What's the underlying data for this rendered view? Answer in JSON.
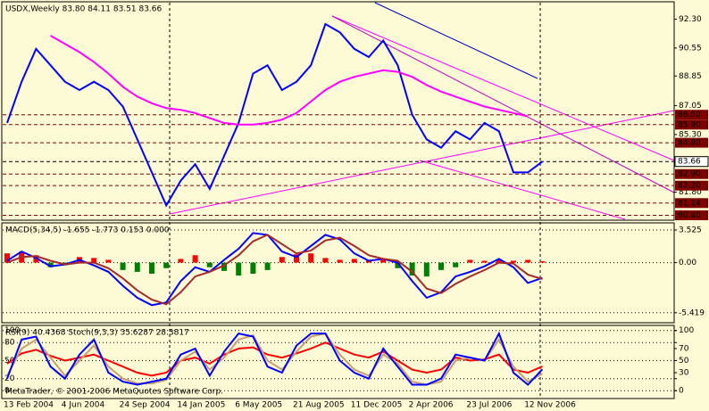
{
  "chart_data": [
    {
      "type": "line",
      "title": "USDX,Weekly  83.80 84.11 83.51 83.66",
      "categories": [
        "13 Feb 2004",
        null,
        null,
        null,
        "4 Jun 2004",
        null,
        null,
        null,
        "24 Sep 2004",
        null,
        null,
        null,
        "14 Jan 2005",
        null,
        null,
        null,
        "6 May 2005",
        null,
        null,
        null,
        "21 Aug 2005",
        null,
        null,
        null,
        "11 Dec 2005",
        null,
        null,
        null,
        "2 Apr 2006",
        null,
        null,
        null,
        "23 Jul 2006",
        null,
        null,
        null,
        "12 Nov 2006",
        null
      ],
      "ylim": [
        80.1,
        93.3
      ],
      "yticks": [
        {
          "value": 92.3,
          "label": "92.30"
        },
        {
          "value": 90.55,
          "label": "90.55"
        },
        {
          "value": 88.85,
          "label": "88.85"
        },
        {
          "value": 87.05,
          "label": "87.05"
        },
        {
          "value": 85.3,
          "label": "85.30"
        },
        {
          "value": 81.8,
          "label": "81.80"
        }
      ],
      "grid": false,
      "series": [
        {
          "color": "#0000ff",
          "values": [
            86.0,
            88.5,
            90.5,
            89.5,
            88.5,
            88.0,
            88.5,
            88.0,
            87.0,
            85.0,
            83.0,
            81.0,
            82.5,
            83.5,
            82.0,
            84.0,
            86.0,
            89.0,
            89.5,
            88.0,
            88.5,
            89.5,
            92.0,
            91.5,
            90.5,
            90.0,
            91.0,
            89.5,
            86.5,
            85.0,
            84.5,
            85.5,
            85.0,
            86.0,
            85.5,
            83.0,
            83.0,
            83.66
          ]
        },
        {
          "color": "#ff00ff",
          "values": [
            null,
            null,
            null,
            91.3,
            90.8,
            90.3,
            89.7,
            89.0,
            88.2,
            87.6,
            87.2,
            86.9,
            86.8,
            86.6,
            86.3,
            86.0,
            85.9,
            85.9,
            86.0,
            86.2,
            86.6,
            87.3,
            88.0,
            88.5,
            88.8,
            89.0,
            89.2,
            89.1,
            88.8,
            88.3,
            87.9,
            87.6,
            87.3,
            87.0,
            86.8,
            86.6,
            86.4,
            null
          ]
        }
      ],
      "levels": [
        {
          "value": 86.5,
          "label": "86.50",
          "color": "#800000"
        },
        {
          "value": 85.9,
          "label": "85.90",
          "color": "#800000"
        },
        {
          "value": 84.8,
          "label": "84.80",
          "color": "#800000"
        },
        {
          "value": 83.66,
          "label": "83.66",
          "color": "#ffffff"
        },
        {
          "value": 82.9,
          "label": "82.90",
          "color": "#800000"
        },
        {
          "value": 82.2,
          "label": "82.20",
          "color": "#800000"
        },
        {
          "value": 81.14,
          "label": "81.14",
          "color": "#800000"
        },
        {
          "value": 80.4,
          "label": "80.40",
          "color": "#800000"
        }
      ]
    },
    {
      "type": "line",
      "title": "MACD(5,34,5) -1.655 -1.773 0.153 0.000",
      "ylim": [
        -6.5,
        4.2
      ],
      "yticks": [
        3.525,
        {
          "value": 0,
          "label": "0.00"
        },
        -5.419
      ],
      "grid": true,
      "series": [
        {
          "type": "bar",
          "color": "#ff0000",
          "negative_color": "#008000",
          "values": [
            1.0,
            1.2,
            0.8,
            -0.5,
            -0.3,
            0.6,
            0.5,
            0.3,
            -0.8,
            -1.0,
            -1.2,
            -0.6,
            0.4,
            0.8,
            -0.5,
            -0.9,
            -1.4,
            -1.2,
            -0.8,
            0.6,
            0.9,
            1.0,
            0.5,
            0.3,
            0.4,
            0.2,
            0.4,
            -0.6,
            -1.4,
            -1.5,
            -0.8,
            -0.5,
            0.3,
            0.2,
            0.3,
            0.2,
            0.3,
            0.153
          ]
        },
        {
          "color": "#0000ff",
          "values": [
            0.2,
            1.2,
            0.5,
            -0.4,
            -0.2,
            0.3,
            -0.3,
            -1.0,
            -2.5,
            -3.8,
            -4.6,
            -4.3,
            -2.0,
            -0.5,
            -1.0,
            0.3,
            1.5,
            3.2,
            3.0,
            1.2,
            0.6,
            1.8,
            3.0,
            2.5,
            1.0,
            0.2,
            0.4,
            0.0,
            -2.0,
            -3.8,
            -3.2,
            -1.5,
            -1.0,
            -0.4,
            0.4,
            -0.5,
            -2.2,
            -1.655
          ]
        },
        {
          "color": "#a52a2a",
          "values": [
            0.0,
            0.6,
            0.7,
            0.2,
            -0.2,
            0.0,
            0.0,
            -0.6,
            -1.7,
            -3.0,
            -4.0,
            -4.5,
            -3.2,
            -1.5,
            -1.0,
            -0.3,
            0.8,
            2.3,
            3.0,
            2.0,
            1.0,
            1.3,
            2.4,
            2.7,
            1.8,
            0.8,
            0.4,
            0.2,
            -1.0,
            -2.8,
            -3.3,
            -2.3,
            -1.5,
            -0.8,
            0.0,
            -0.1,
            -1.3,
            -1.773
          ]
        }
      ]
    },
    {
      "type": "line",
      "title": "RSI(9) 40.4368 Stoch(9,3,3) 35.6287 28.3817",
      "watermark": "MetaTrader, © 2001-2006 MetaQuotes Software Corp.",
      "ylim": [
        -13,
        107
      ],
      "yticks": [
        0,
        20,
        50,
        80,
        100
      ],
      "y2ticks": [
        0,
        30,
        50,
        70,
        100
      ],
      "grid": true,
      "series": [
        {
          "color": "#ff0000",
          "values": [
            45,
            62,
            68,
            58,
            50,
            55,
            60,
            50,
            40,
            30,
            25,
            30,
            50,
            55,
            45,
            60,
            70,
            72,
            60,
            55,
            62,
            70,
            80,
            70,
            60,
            55,
            65,
            50,
            35,
            30,
            35,
            55,
            50,
            52,
            60,
            35,
            30,
            40.4368
          ]
        },
        {
          "color": "#c8a070",
          "values": [
            25,
            70,
            85,
            55,
            25,
            50,
            75,
            40,
            20,
            12,
            12,
            18,
            50,
            65,
            35,
            55,
            85,
            92,
            50,
            35,
            65,
            90,
            95,
            60,
            35,
            25,
            60,
            45,
            15,
            10,
            15,
            50,
            55,
            50,
            85,
            40,
            15,
            28.3817
          ]
        },
        {
          "color": "#0000ff",
          "values": [
            20,
            85,
            90,
            40,
            20,
            60,
            85,
            30,
            15,
            10,
            15,
            20,
            60,
            70,
            25,
            65,
            95,
            90,
            40,
            30,
            75,
            95,
            95,
            50,
            30,
            20,
            70,
            40,
            10,
            10,
            20,
            60,
            55,
            50,
            95,
            30,
            10,
            35.6287
          ]
        }
      ]
    }
  ]
}
